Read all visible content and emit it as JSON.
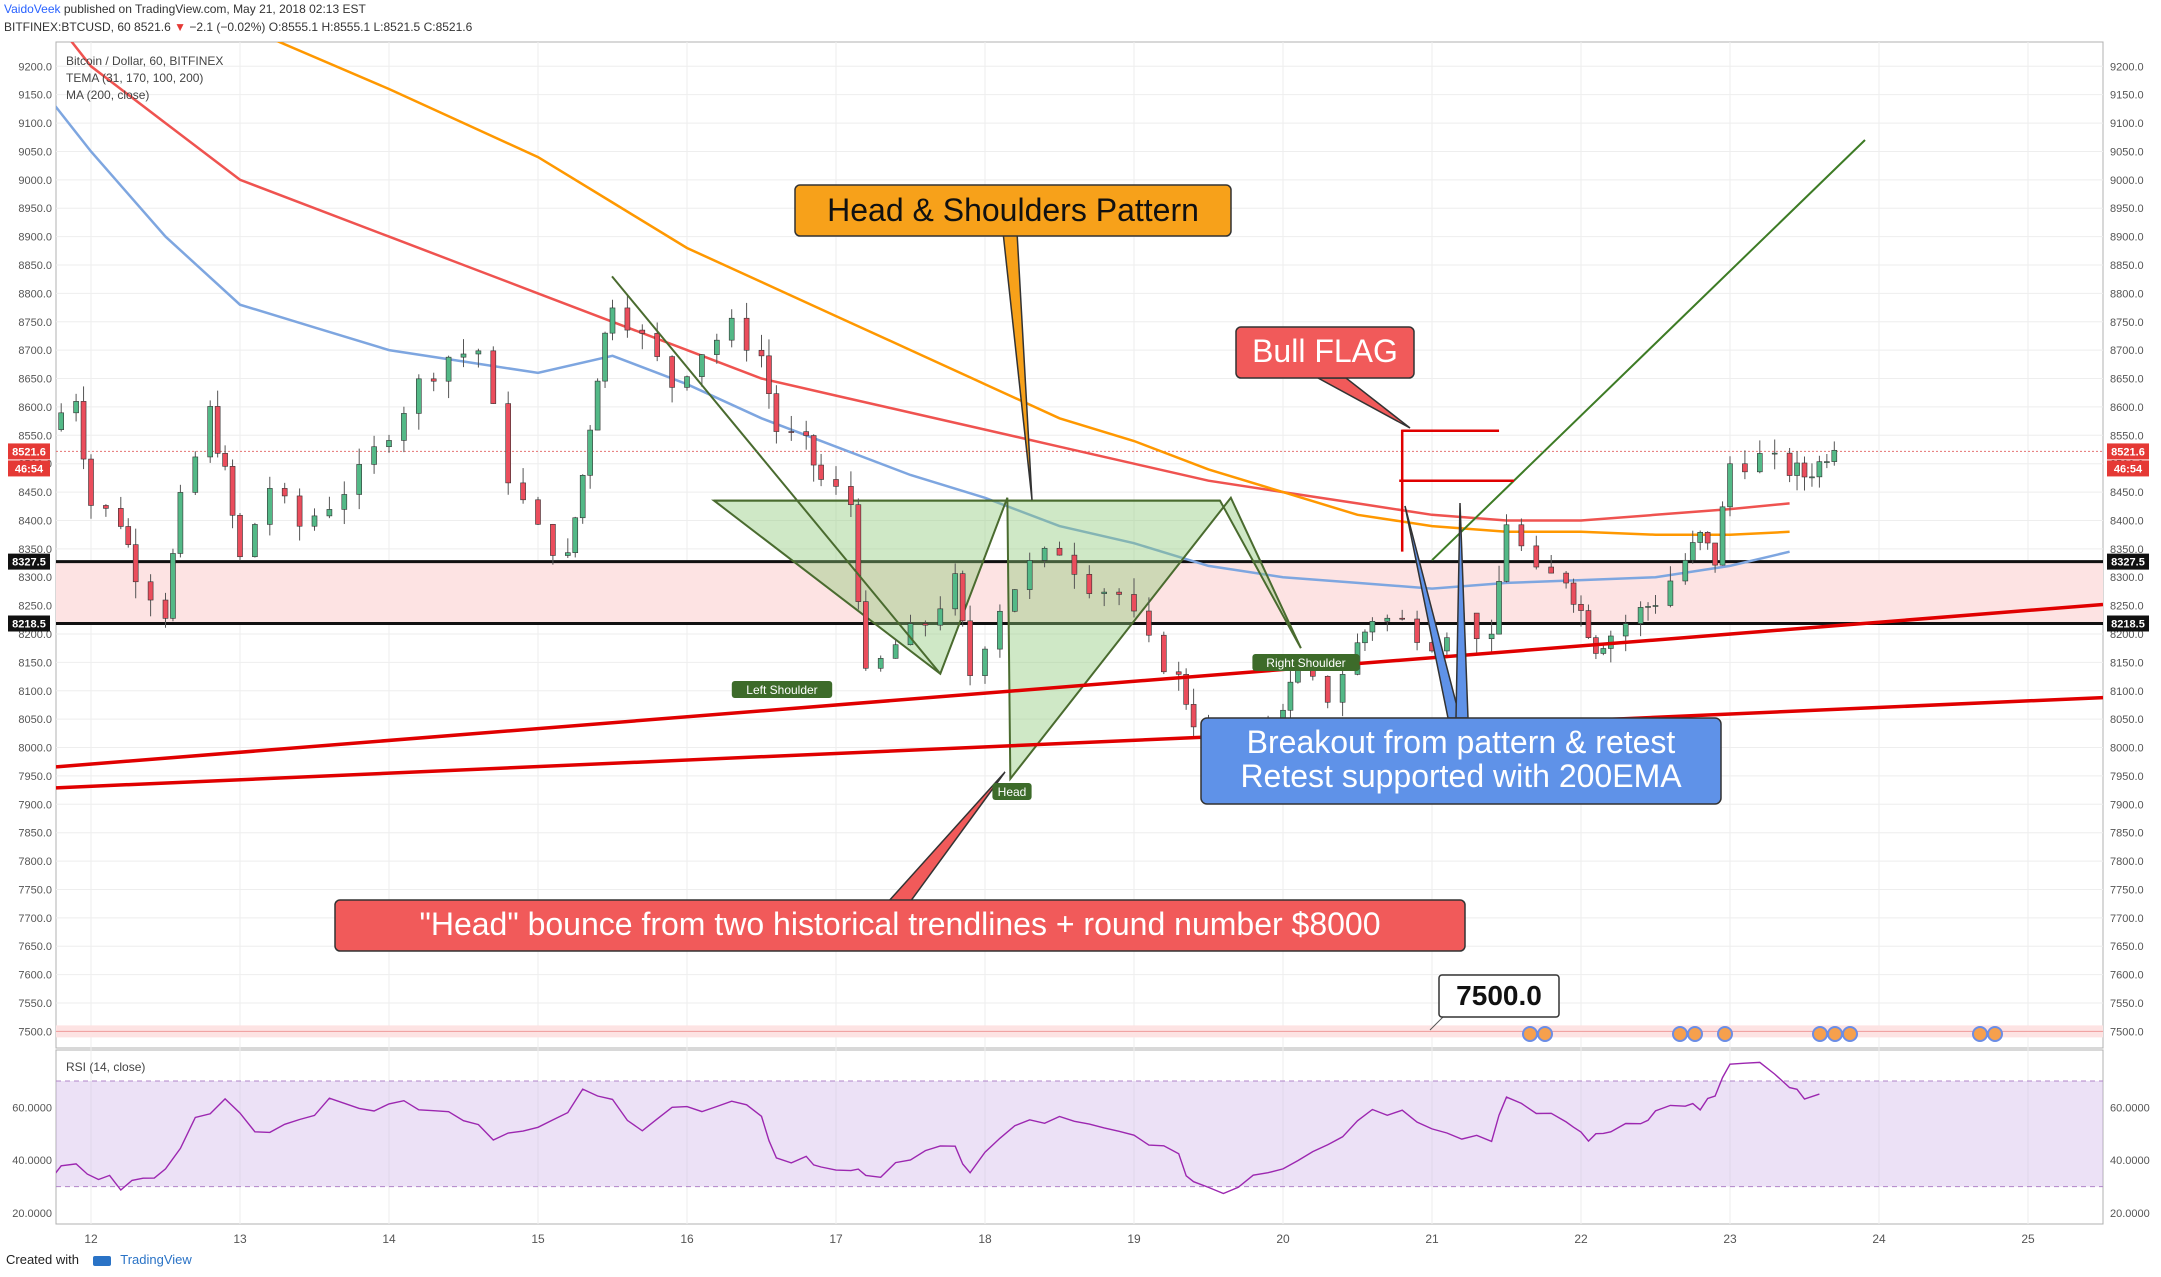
{
  "header": {
    "author": "VaidoVeek",
    "published": "published on TradingView.com, May 21, 2018 02:13 EST",
    "symbol": "BITFINEX:BTCUSD, 60",
    "last": "8521.6",
    "change": "−2.1 (−0.02%)",
    "o": "O:8555.1",
    "h": "H:8555.1",
    "l": "L:8521.5",
    "c": "C:8521.6"
  },
  "legend": {
    "line1": "Bitcoin / Dollar, 60, BITFINEX",
    "line2": "TEMA (31, 170, 100, 200)",
    "line3": "MA (200, close)"
  },
  "rsi_label": "RSI (14, close)",
  "price_tags": {
    "last": "8521.6",
    "countdown": "46:54",
    "level_high": "8327.5",
    "level_low": "8218.5"
  },
  "annotations": {
    "hs_title": "Head & Shoulders Pattern",
    "bull_flag": "Bull FLAG",
    "breakout_line1": "Breakout from pattern & retest",
    "breakout_line2": "Retest supported with 200EMA",
    "head_bounce": "\"Head\" bounce from two historical trendlines + round number $8000",
    "left_shoulder": "Left Shoulder",
    "head": "Head",
    "right_shoulder": "Right Shoulder",
    "level_7500": "7500.0"
  },
  "footer": {
    "created_with": "Created with",
    "brand": "TradingView"
  },
  "colors": {
    "up": "#53b987",
    "down": "#eb4d5c",
    "ema_red": "#ef5350",
    "ema_orange": "#ff9800",
    "ma_blue": "#7ea6e0",
    "rsi": "#9c27b0",
    "trend_red": "#e00000",
    "zone_fill": "#fde3e3"
  },
  "chart_data": {
    "type": "candlestick",
    "title": "Bitcoin / Dollar, 60, BITFINEX",
    "x_ticks": [
      "12",
      "13",
      "14",
      "15",
      "16",
      "17",
      "18",
      "19",
      "20",
      "21",
      "22",
      "23",
      "24",
      "25"
    ],
    "y_ticks": [
      9200,
      9150,
      9100,
      9050,
      9000,
      8950,
      8900,
      8850,
      8800,
      8750,
      8700,
      8650,
      8600,
      8550,
      8500,
      8450,
      8400,
      8350,
      8300,
      8250,
      8200,
      8150,
      8100,
      8050,
      8000,
      7950,
      7900,
      7850,
      7800,
      7750,
      7700,
      7650,
      7600,
      7550,
      7500
    ],
    "ylim": [
      7470,
      9220
    ],
    "rsi_ticks": [
      "60.0000",
      "40.0000",
      "20.0000"
    ],
    "rsi_levels": [
      70,
      30
    ],
    "price_path": [
      [
        11.7,
        8560
      ],
      [
        11.9,
        8620
      ],
      [
        12.0,
        8430
      ],
      [
        12.2,
        8400
      ],
      [
        12.3,
        8310
      ],
      [
        12.5,
        8240
      ],
      [
        12.6,
        8430
      ],
      [
        12.8,
        8590
      ],
      [
        12.9,
        8480
      ],
      [
        13.0,
        8330
      ],
      [
        13.2,
        8460
      ],
      [
        13.4,
        8390
      ],
      [
        13.6,
        8430
      ],
      [
        13.8,
        8480
      ],
      [
        14.0,
        8560
      ],
      [
        14.2,
        8640
      ],
      [
        14.4,
        8690
      ],
      [
        14.6,
        8700
      ],
      [
        14.8,
        8480
      ],
      [
        15.0,
        8380
      ],
      [
        15.2,
        8330
      ],
      [
        15.3,
        8480
      ],
      [
        15.4,
        8660
      ],
      [
        15.5,
        8790
      ],
      [
        15.7,
        8720
      ],
      [
        15.9,
        8640
      ],
      [
        16.1,
        8700
      ],
      [
        16.3,
        8740
      ],
      [
        16.5,
        8690
      ],
      [
        16.6,
        8560
      ],
      [
        16.8,
        8530
      ],
      [
        16.9,
        8470
      ],
      [
        17.1,
        8430
      ],
      [
        17.2,
        8120
      ],
      [
        17.4,
        8180
      ],
      [
        17.6,
        8220
      ],
      [
        17.8,
        8290
      ],
      [
        17.9,
        8130
      ],
      [
        18.1,
        8250
      ],
      [
        18.3,
        8320
      ],
      [
        18.5,
        8350
      ],
      [
        18.7,
        8290
      ],
      [
        18.9,
        8270
      ],
      [
        19.1,
        8180
      ],
      [
        19.3,
        8120
      ],
      [
        19.4,
        8050
      ],
      [
        19.6,
        7960
      ],
      [
        19.7,
        8020
      ],
      [
        19.8,
        8000
      ],
      [
        20.0,
        8080
      ],
      [
        20.1,
        8130
      ],
      [
        20.3,
        8090
      ],
      [
        20.5,
        8180
      ],
      [
        20.6,
        8230
      ],
      [
        20.8,
        8220
      ],
      [
        21.0,
        8190
      ],
      [
        21.2,
        8230
      ],
      [
        21.4,
        8180
      ],
      [
        21.5,
        8400
      ],
      [
        21.7,
        8300
      ],
      [
        21.9,
        8300
      ],
      [
        22.0,
        8240
      ],
      [
        22.1,
        8180
      ],
      [
        22.2,
        8200
      ],
      [
        22.4,
        8240
      ],
      [
        22.5,
        8260
      ],
      [
        22.7,
        8330
      ],
      [
        22.8,
        8370
      ],
      [
        22.9,
        8330
      ],
      [
        23.0,
        8500
      ],
      [
        23.2,
        8510
      ],
      [
        23.4,
        8490
      ],
      [
        23.5,
        8480
      ],
      [
        23.6,
        8500
      ],
      [
        23.7,
        8540
      ]
    ],
    "series": [
      {
        "name": "TEMA (31, 170, 100, 200)",
        "role": "ema-red",
        "points": [
          [
            11.7,
            9300
          ],
          [
            12.0,
            9200
          ],
          [
            12.5,
            9100
          ],
          [
            13.0,
            9000
          ],
          [
            13.5,
            8950
          ],
          [
            14.0,
            8900
          ],
          [
            14.5,
            8850
          ],
          [
            15.0,
            8800
          ],
          [
            15.5,
            8750
          ],
          [
            16.0,
            8700
          ],
          [
            16.5,
            8650
          ],
          [
            17.0,
            8620
          ],
          [
            17.5,
            8590
          ],
          [
            18.0,
            8560
          ],
          [
            18.5,
            8530
          ],
          [
            19.0,
            8500
          ],
          [
            19.5,
            8470
          ],
          [
            20.0,
            8450
          ],
          [
            20.5,
            8430
          ],
          [
            21.0,
            8410
          ],
          [
            21.5,
            8400
          ],
          [
            22.0,
            8400
          ],
          [
            22.5,
            8410
          ],
          [
            23.0,
            8420
          ],
          [
            23.4,
            8430
          ]
        ]
      },
      {
        "name": "TEMA (31, 170, 100, 200)",
        "role": "ema-orange",
        "points": [
          [
            13.2,
            9250
          ],
          [
            14.0,
            9160
          ],
          [
            15.0,
            9040
          ],
          [
            15.5,
            8960
          ],
          [
            16.0,
            8880
          ],
          [
            16.5,
            8820
          ],
          [
            17.0,
            8760
          ],
          [
            17.5,
            8700
          ],
          [
            18.0,
            8640
          ],
          [
            18.5,
            8580
          ],
          [
            19.0,
            8540
          ],
          [
            19.5,
            8490
          ],
          [
            20.0,
            8450
          ],
          [
            20.5,
            8410
          ],
          [
            21.0,
            8390
          ],
          [
            21.5,
            8380
          ],
          [
            22.0,
            8380
          ],
          [
            22.5,
            8375
          ],
          [
            23.0,
            8375
          ],
          [
            23.4,
            8380
          ]
        ]
      },
      {
        "name": "MA (200, close)",
        "role": "ma-blue",
        "points": [
          [
            11.7,
            9150
          ],
          [
            12.0,
            9050
          ],
          [
            12.5,
            8900
          ],
          [
            13.0,
            8780
          ],
          [
            13.5,
            8740
          ],
          [
            14.0,
            8700
          ],
          [
            14.5,
            8680
          ],
          [
            15.0,
            8660
          ],
          [
            15.5,
            8690
          ],
          [
            16.0,
            8640
          ],
          [
            16.5,
            8580
          ],
          [
            17.0,
            8530
          ],
          [
            17.5,
            8480
          ],
          [
            18.0,
            8440
          ],
          [
            18.5,
            8390
          ],
          [
            19.0,
            8360
          ],
          [
            19.5,
            8320
          ],
          [
            20.0,
            8300
          ],
          [
            20.5,
            8290
          ],
          [
            21.0,
            8280
          ],
          [
            21.5,
            8290
          ],
          [
            22.0,
            8295
          ],
          [
            22.5,
            8300
          ],
          [
            23.0,
            8320
          ],
          [
            23.4,
            8345
          ]
        ]
      }
    ],
    "rsi_path": [
      [
        11.7,
        33
      ],
      [
        11.9,
        38
      ],
      [
        12.2,
        30
      ],
      [
        12.5,
        35
      ],
      [
        12.7,
        58
      ],
      [
        12.9,
        62
      ],
      [
        13.1,
        50
      ],
      [
        13.3,
        56
      ],
      [
        13.5,
        58
      ],
      [
        13.7,
        64
      ],
      [
        13.9,
        60
      ],
      [
        14.1,
        62
      ],
      [
        14.3,
        60
      ],
      [
        14.5,
        57
      ],
      [
        14.7,
        50
      ],
      [
        14.9,
        50
      ],
      [
        15.1,
        53
      ],
      [
        15.3,
        65
      ],
      [
        15.5,
        62
      ],
      [
        15.7,
        53
      ],
      [
        15.9,
        60
      ],
      [
        16.1,
        58
      ],
      [
        16.3,
        60
      ],
      [
        16.5,
        58
      ],
      [
        16.6,
        40
      ],
      [
        16.8,
        40
      ],
      [
        16.9,
        38
      ],
      [
        17.1,
        37
      ],
      [
        17.2,
        32
      ],
      [
        17.4,
        40
      ],
      [
        17.6,
        42
      ],
      [
        17.8,
        44
      ],
      [
        17.9,
        36
      ],
      [
        18.1,
        48
      ],
      [
        18.3,
        55
      ],
      [
        18.5,
        55
      ],
      [
        18.7,
        52
      ],
      [
        18.9,
        50
      ],
      [
        19.1,
        48
      ],
      [
        19.3,
        40
      ],
      [
        19.4,
        32
      ],
      [
        19.6,
        28
      ],
      [
        19.8,
        35
      ],
      [
        20.0,
        38
      ],
      [
        20.2,
        45
      ],
      [
        20.4,
        50
      ],
      [
        20.6,
        60
      ],
      [
        20.8,
        58
      ],
      [
        21.0,
        54
      ],
      [
        21.2,
        50
      ],
      [
        21.4,
        48
      ],
      [
        21.5,
        66
      ],
      [
        21.7,
        56
      ],
      [
        21.9,
        55
      ],
      [
        22.0,
        50
      ],
      [
        22.1,
        48
      ],
      [
        22.2,
        52
      ],
      [
        22.4,
        56
      ],
      [
        22.5,
        58
      ],
      [
        22.7,
        62
      ],
      [
        22.8,
        58
      ],
      [
        22.9,
        65
      ],
      [
        23.0,
        76
      ],
      [
        23.2,
        75
      ],
      [
        23.4,
        68
      ],
      [
        23.5,
        62
      ],
      [
        23.7,
        66
      ]
    ],
    "levels": [
      8327.5,
      8218.5,
      7500.0
    ]
  }
}
